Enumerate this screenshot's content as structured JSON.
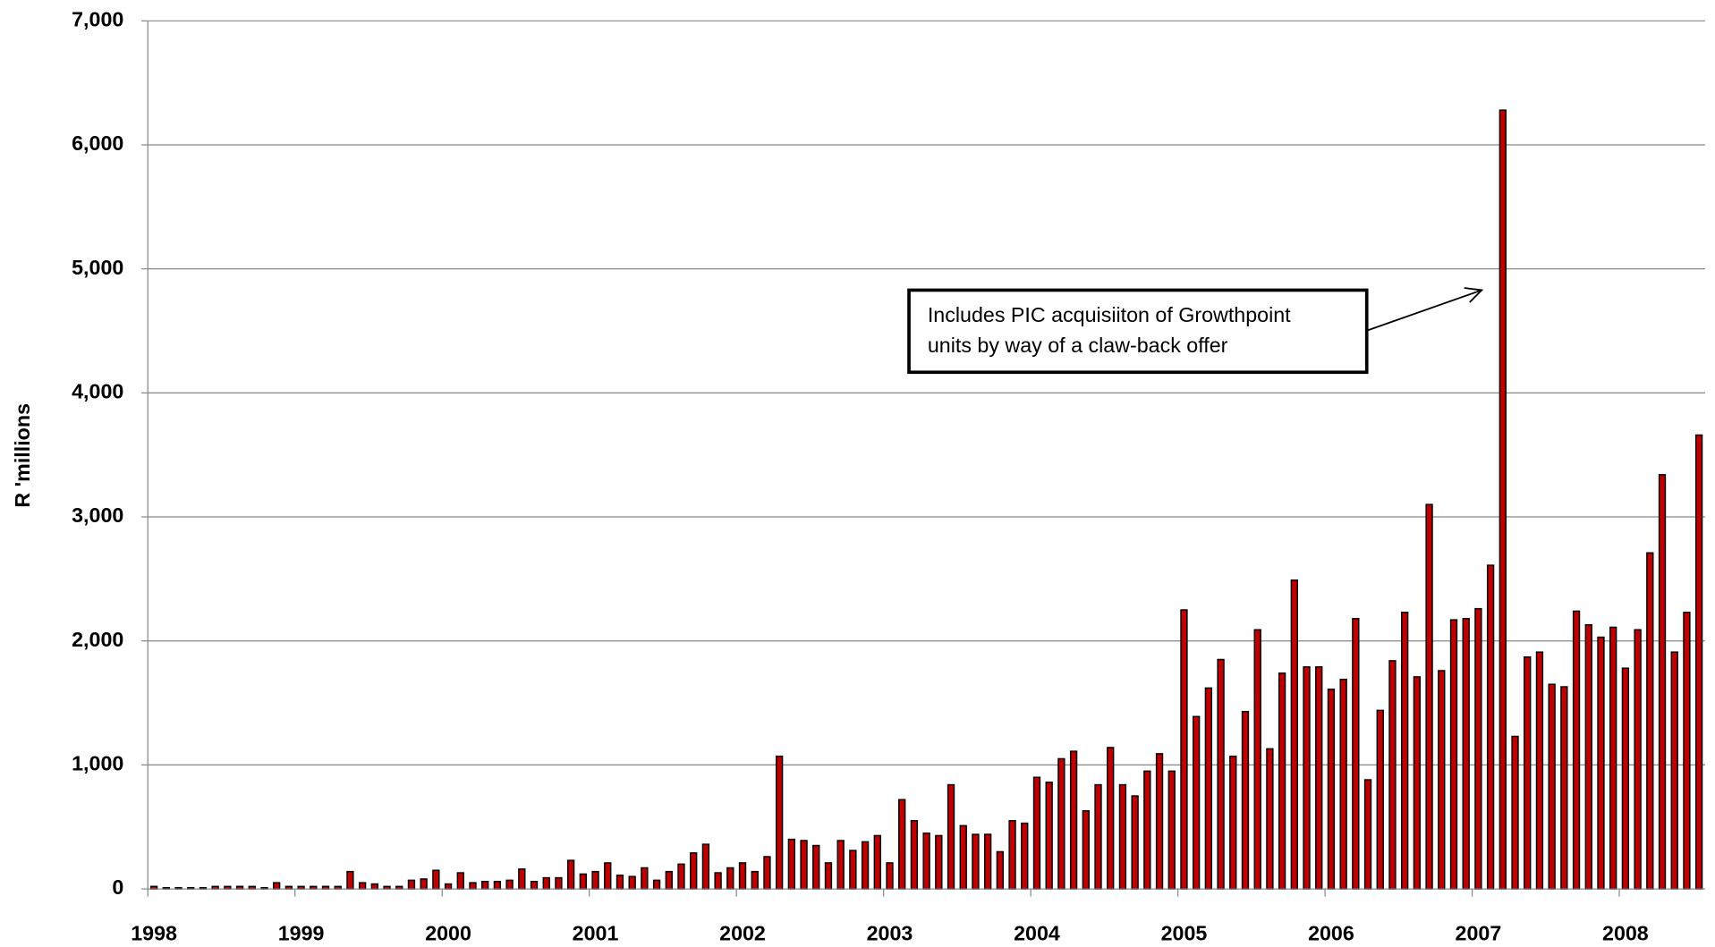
{
  "chart_data": {
    "type": "bar",
    "y_label": "R 'millions",
    "annotation": [
      "Includes PIC acquisiiton of Growthpoint",
      "units by way of a claw-back offer"
    ],
    "color": "#c00000",
    "grid": true,
    "ylim": [
      0,
      7000
    ],
    "yticks": [
      0,
      {
        "value": 1000,
        "label": "1,000"
      },
      {
        "value": 2000,
        "label": "2,000"
      },
      {
        "value": 3000,
        "label": "3,000"
      },
      {
        "value": 4000,
        "label": "4,000"
      },
      {
        "value": 5000,
        "label": "5,000"
      },
      {
        "value": 6000,
        "label": "6,000"
      },
      {
        "value": 7000,
        "label": "7,000"
      }
    ],
    "categories": [
      "1998",
      null,
      null,
      null,
      null,
      null,
      null,
      null,
      null,
      null,
      null,
      null,
      "1999",
      null,
      null,
      null,
      null,
      null,
      null,
      null,
      null,
      null,
      null,
      null,
      "2000",
      null,
      null,
      null,
      null,
      null,
      null,
      null,
      null,
      null,
      null,
      null,
      "2001",
      null,
      null,
      null,
      null,
      null,
      null,
      null,
      null,
      null,
      null,
      null,
      "2002",
      null,
      null,
      null,
      null,
      null,
      null,
      null,
      null,
      null,
      null,
      null,
      "2003",
      null,
      null,
      null,
      null,
      null,
      null,
      null,
      null,
      null,
      null,
      null,
      "2004",
      null,
      null,
      null,
      null,
      null,
      null,
      null,
      null,
      null,
      null,
      null,
      "2005",
      null,
      null,
      null,
      null,
      null,
      null,
      null,
      null,
      null,
      null,
      null,
      "2006",
      null,
      null,
      null,
      null,
      null,
      null,
      null,
      null,
      null,
      null,
      null,
      "2007",
      null,
      null,
      null,
      null,
      null,
      null,
      null,
      null,
      null,
      null,
      null,
      "2008",
      null,
      null,
      null,
      null,
      null,
      null
    ],
    "values": [
      20,
      10,
      10,
      10,
      10,
      20,
      20,
      20,
      20,
      10,
      50,
      20,
      20,
      20,
      20,
      20,
      140,
      50,
      40,
      20,
      20,
      70,
      80,
      150,
      40,
      130,
      50,
      60,
      60,
      70,
      160,
      60,
      90,
      90,
      230,
      120,
      140,
      210,
      110,
      100,
      170,
      70,
      140,
      200,
      290,
      360,
      130,
      170,
      210,
      140,
      260,
      1070,
      400,
      390,
      350,
      210,
      390,
      310,
      380,
      430,
      210,
      720,
      550,
      450,
      430,
      840,
      510,
      440,
      440,
      300,
      550,
      530,
      900,
      860,
      1050,
      1110,
      630,
      840,
      1140,
      840,
      750,
      950,
      1090,
      950,
      2250,
      1390,
      1620,
      1850,
      1070,
      1430,
      2090,
      1130,
      1740,
      2490,
      1790,
      1790,
      1610,
      1690,
      2180,
      880,
      1440,
      1840,
      2230,
      1710,
      3100,
      1760,
      2170,
      2180,
      2260,
      2610,
      6280,
      1230,
      1870,
      1910,
      1650,
      1630,
      2240,
      2130,
      2030,
      2110,
      1780,
      2090,
      2710,
      3340,
      1910,
      2230,
      3660
    ]
  }
}
